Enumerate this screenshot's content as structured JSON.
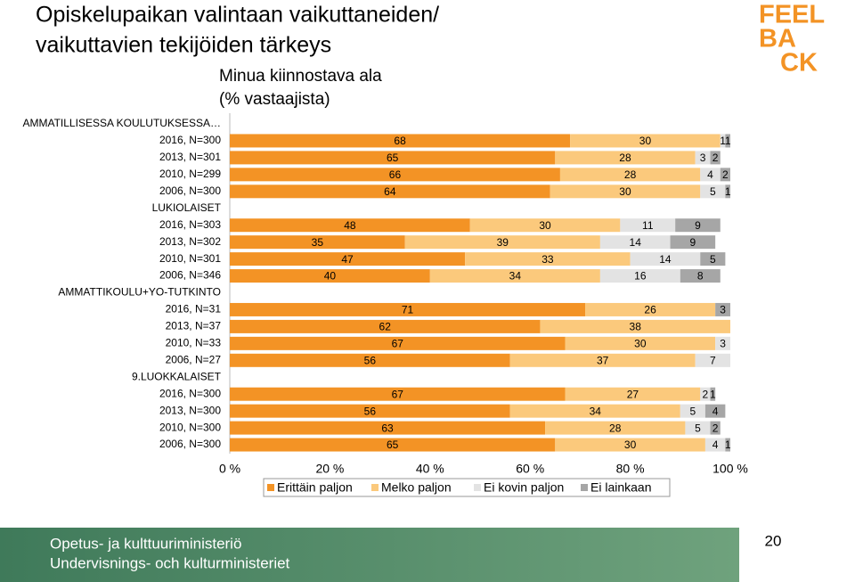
{
  "header": {
    "title_lines": [
      "Opiskelupaikan valintaan vaikuttaneiden/",
      "vaikuttavien tekijöiden tärkeys"
    ],
    "logo": [
      "FEEL",
      "BA",
      "CK"
    ]
  },
  "chart_data": {
    "type": "stacked-bar-horizontal",
    "subtitle": [
      "Minua kiinnostava ala",
      "(% vastaajista)"
    ],
    "categories": [
      "AMMATILLISESSA KOULUTUKSESSA…",
      "2016, N=300",
      "2013, N=301",
      "2010, N=299",
      "2006, N=300",
      "LUKIOLAISET",
      "2016, N=303",
      "2013, N=302",
      "2010, N=301",
      "2006, N=346",
      "AMMATTIKOULU+YO-TUTKINTO",
      "2016, N=31",
      "2013, N=37",
      "2010, N=33",
      "2006, N=27",
      "9.LUOKKALAISET",
      "2016, N=300",
      "2013, N=300",
      "2010, N=300",
      "2006, N=300"
    ],
    "series": [
      {
        "name": "Erittäin paljon",
        "color": "#f39325",
        "values": [
          null,
          68,
          65,
          66,
          64,
          null,
          48,
          35,
          47,
          40,
          null,
          71,
          62,
          67,
          56,
          null,
          67,
          56,
          63,
          65
        ]
      },
      {
        "name": "Melko paljon",
        "color": "#fbc97c",
        "values": [
          null,
          30,
          28,
          28,
          30,
          null,
          30,
          39,
          33,
          34,
          null,
          26,
          38,
          30,
          37,
          null,
          27,
          34,
          28,
          30
        ]
      },
      {
        "name": "Ei kovin paljon",
        "color": "#e3e3e3",
        "values": [
          null,
          1,
          3,
          4,
          5,
          null,
          11,
          14,
          14,
          16,
          null,
          null,
          null,
          3,
          7,
          null,
          2,
          5,
          5,
          4
        ]
      },
      {
        "name": "Ei lainkaan",
        "color": "#a6a6a6",
        "values": [
          null,
          1,
          2,
          2,
          1,
          null,
          9,
          9,
          5,
          8,
          null,
          3,
          null,
          null,
          null,
          null,
          1,
          4,
          2,
          1
        ]
      }
    ],
    "xlim": [
      0,
      100
    ],
    "xticks": [
      {
        "value": 0,
        "label": "0 %"
      },
      {
        "value": 20,
        "label": "20 %"
      },
      {
        "value": 40,
        "label": "40 %"
      },
      {
        "value": 60,
        "label": "60 %"
      },
      {
        "value": 80,
        "label": "80 %"
      },
      {
        "value": 100,
        "label": "100 %"
      }
    ]
  },
  "footer": {
    "lines": [
      "Opetus- ja kulttuuriministeriö",
      "Undervisnings- och kulturministeriet"
    ],
    "page": "20"
  }
}
